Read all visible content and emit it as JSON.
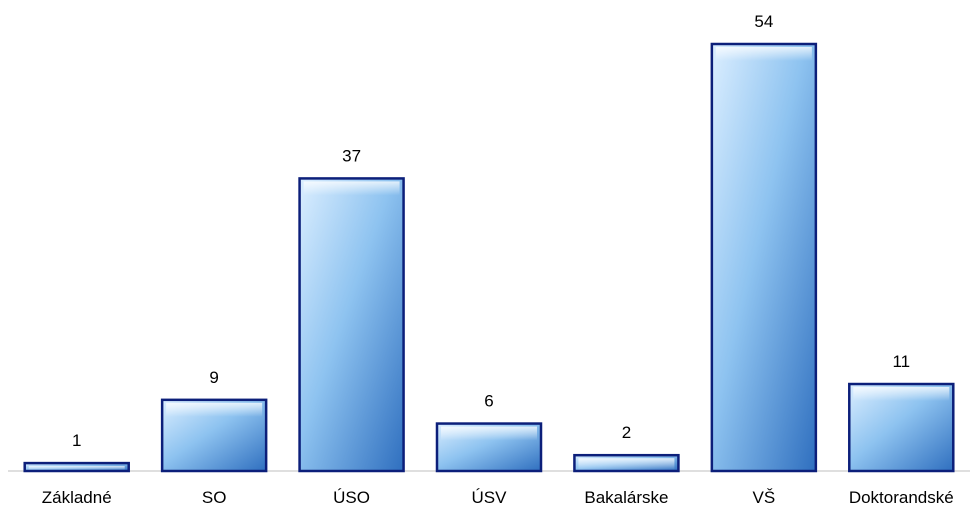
{
  "chart_data": {
    "type": "bar",
    "categories": [
      "Základné",
      "SO",
      "ÚSO",
      "ÚSV",
      "Bakalárske",
      "VŠ",
      "Doktorandské"
    ],
    "values": [
      1,
      9,
      37,
      6,
      2,
      54,
      11
    ],
    "title": "",
    "xlabel": "",
    "ylabel": "",
    "ylim": [
      0,
      54
    ],
    "grid": false,
    "legend": "none",
    "data_labels": true
  },
  "colors": {
    "bar_light": "#dbeeff",
    "bar_mid": "#8ec3f0",
    "bar_dark": "#2f6fbf",
    "bar_border": "#0c1f7a",
    "axis": "#bfbfbf"
  }
}
